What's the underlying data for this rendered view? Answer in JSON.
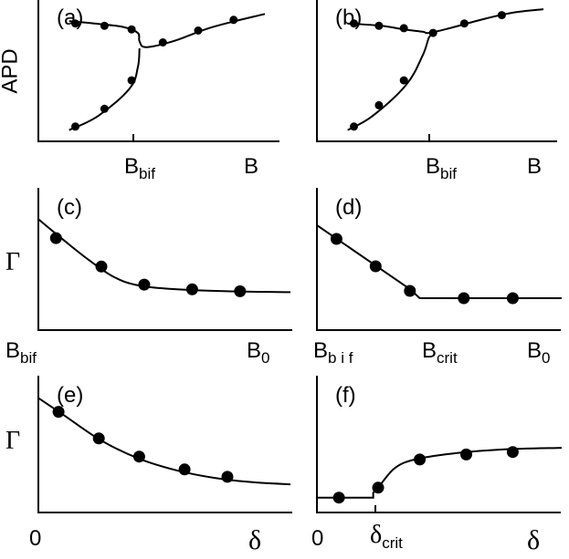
{
  "figure": {
    "panel_labels": {
      "a": "(a)",
      "b": "(b)",
      "c": "(c)",
      "d": "(d)",
      "e": "(e)",
      "f": "(f)"
    },
    "y_labels": {
      "apd": "APD",
      "gamma": "Γ"
    },
    "x_labels": {
      "B": "B",
      "B0": "B",
      "B0_sub": "0",
      "Bbif": "B",
      "Bbif_sub": "bif",
      "Bbif_spaced_sub": "b i f",
      "Bcrit": "B",
      "Bcrit_sub": "crit",
      "zero": "0",
      "delta": "δ",
      "delta_crit": "δ",
      "delta_crit_sub": "crit"
    }
  },
  "chart_data": [
    {
      "panel": "(a)",
      "type": "line",
      "ylabel": "APD",
      "xlabel": "B",
      "xlim": [
        0,
        10
      ],
      "ylim": [
        0,
        10
      ],
      "x_ticks": [
        {
          "x": 3.95,
          "label": "Bbif"
        }
      ],
      "curves": [
        {
          "name": "",
          "points": [
            [
              0.6,
              9.3
            ],
            [
              1.8,
              9.1
            ],
            [
              3.2,
              8.8
            ],
            [
              3.9,
              8.3
            ],
            [
              3.98,
              7.6
            ],
            [
              4.3,
              7.1
            ],
            [
              5.6,
              7.6
            ],
            [
              7.5,
              8.8
            ],
            [
              10,
              9.9
            ]
          ]
        },
        {
          "name": "",
          "points": [
            [
              0.6,
              0.1
            ],
            [
              2.0,
              1.3
            ],
            [
              3.5,
              3.6
            ],
            [
              3.9,
              5.4
            ],
            [
              3.98,
              7.0
            ]
          ]
        }
      ],
      "markers": [
        [
          0.9,
          9.1
        ],
        [
          2.3,
          8.9
        ],
        [
          3.6,
          8.6
        ],
        [
          5.1,
          7.5
        ],
        [
          6.8,
          8.5
        ],
        [
          8.5,
          9.4
        ],
        [
          0.9,
          0.4
        ],
        [
          2.3,
          1.9
        ],
        [
          3.6,
          4.3
        ]
      ]
    },
    {
      "panel": "(b)",
      "type": "line",
      "xlabel": "B",
      "xlim": [
        0,
        10
      ],
      "ylim": [
        0,
        10
      ],
      "x_ticks": [
        {
          "x": 4.5,
          "label": "Bbif"
        }
      ],
      "curves": [
        {
          "name": "",
          "points": [
            [
              0.6,
              9.1
            ],
            [
              2.2,
              8.9
            ],
            [
              3.3,
              8.6
            ],
            [
              4.2,
              8.4
            ],
            [
              4.5,
              8.3
            ],
            [
              5.5,
              8.7
            ],
            [
              7.2,
              9.5
            ],
            [
              8.5,
              10.0
            ],
            [
              10,
              10.3
            ]
          ]
        },
        {
          "name": "",
          "points": [
            [
              0.6,
              0.1
            ],
            [
              1.8,
              1.3
            ],
            [
              3.4,
              3.9
            ],
            [
              4.2,
              6.4
            ],
            [
              4.5,
              7.9
            ],
            [
              4.7,
              8.2
            ]
          ]
        }
      ],
      "markers": [
        [
          0.9,
          9.1
        ],
        [
          2.1,
          8.9
        ],
        [
          3.3,
          8.7
        ],
        [
          4.7,
          8.3
        ],
        [
          6.2,
          9.1
        ],
        [
          8.0,
          9.8
        ],
        [
          0.9,
          0.4
        ],
        [
          2.1,
          2.2
        ],
        [
          3.3,
          4.3
        ]
      ]
    },
    {
      "panel": "(c)",
      "type": "line",
      "ylabel": "Γ",
      "xlim": [
        0,
        10
      ],
      "ylim": [
        0,
        10
      ],
      "x_ticks": [
        {
          "x": 0.0,
          "label": "Bbif"
        },
        {
          "x": 10.0,
          "label": "B0"
        }
      ],
      "curves": [
        {
          "name": "",
          "points": [
            [
              0.0,
              9.2
            ],
            [
              1.0,
              7.0
            ],
            [
              2.0,
              4.9
            ],
            [
              3.0,
              3.1
            ],
            [
              4.0,
              2.2
            ],
            [
              5.5,
              1.8
            ],
            [
              7.5,
              1.6
            ],
            [
              10,
              1.5
            ]
          ]
        }
      ],
      "markers": [
        [
          0.7,
          7.2
        ],
        [
          2.5,
          4.2
        ],
        [
          4.2,
          2.3
        ],
        [
          6.1,
          1.8
        ],
        [
          8.0,
          1.6
        ]
      ]
    },
    {
      "panel": "(d)",
      "type": "line",
      "ylabel": "Γ",
      "xlim": [
        0,
        10
      ],
      "ylim": [
        0,
        10
      ],
      "x_ticks": [
        {
          "x": 0.0,
          "label": "Bbif"
        },
        {
          "x": 4.2,
          "label": "Bcrit"
        },
        {
          "x": 10.0,
          "label": "B0"
        }
      ],
      "curves": [
        {
          "name": "",
          "points": [
            [
              0.0,
              9.0
            ],
            [
              3.8,
              2.0
            ],
            [
              4.2,
              1.0
            ],
            [
              10,
              1.0
            ]
          ]
        }
      ],
      "markers": [
        [
          0.8,
          7.5
        ],
        [
          2.4,
          4.5
        ],
        [
          3.8,
          1.8
        ],
        [
          6.0,
          1.0
        ],
        [
          8.0,
          1.0
        ]
      ]
    },
    {
      "panel": "(e)",
      "type": "line",
      "ylabel": "Γ",
      "xlabel": "δ",
      "xlim": [
        0,
        10
      ],
      "ylim": [
        0,
        10
      ],
      "x_ticks": [
        {
          "x": 0.0,
          "label": "0"
        }
      ],
      "curves": [
        {
          "name": "",
          "points": [
            [
              0.0,
              9.2
            ],
            [
              1.0,
              7.6
            ],
            [
              2.5,
              5.2
            ],
            [
              4.0,
              3.5
            ],
            [
              5.5,
              2.4
            ],
            [
              7.0,
              1.7
            ],
            [
              8.5,
              1.3
            ],
            [
              10,
              1.1
            ]
          ]
        }
      ],
      "markers": [
        [
          0.8,
          7.9
        ],
        [
          2.4,
          5.4
        ],
        [
          4.0,
          3.7
        ],
        [
          5.8,
          2.5
        ],
        [
          7.5,
          1.8
        ]
      ]
    },
    {
      "panel": "(f)",
      "type": "line",
      "xlabel": "δ",
      "xlim": [
        0,
        10
      ],
      "ylim": [
        0,
        10
      ],
      "x_ticks": [
        {
          "x": 0.0,
          "label": "0"
        },
        {
          "x": 2.3,
          "label": "δcrit"
        }
      ],
      "curves": [
        {
          "name": "",
          "points": [
            [
              0.0,
              0.8
            ],
            [
              2.3,
              0.8
            ],
            [
              2.3,
              1.4
            ],
            [
              2.6,
              2.4
            ],
            [
              3.2,
              4.4
            ],
            [
              4.0,
              5.4
            ],
            [
              5.5,
              6.1
            ],
            [
              7.5,
              6.6
            ],
            [
              10,
              6.8
            ]
          ]
        }
      ],
      "markers": [
        [
          0.9,
          0.8
        ],
        [
          2.5,
          2.0
        ],
        [
          4.2,
          5.4
        ],
        [
          6.1,
          6.0
        ],
        [
          8.0,
          6.3
        ]
      ]
    }
  ]
}
